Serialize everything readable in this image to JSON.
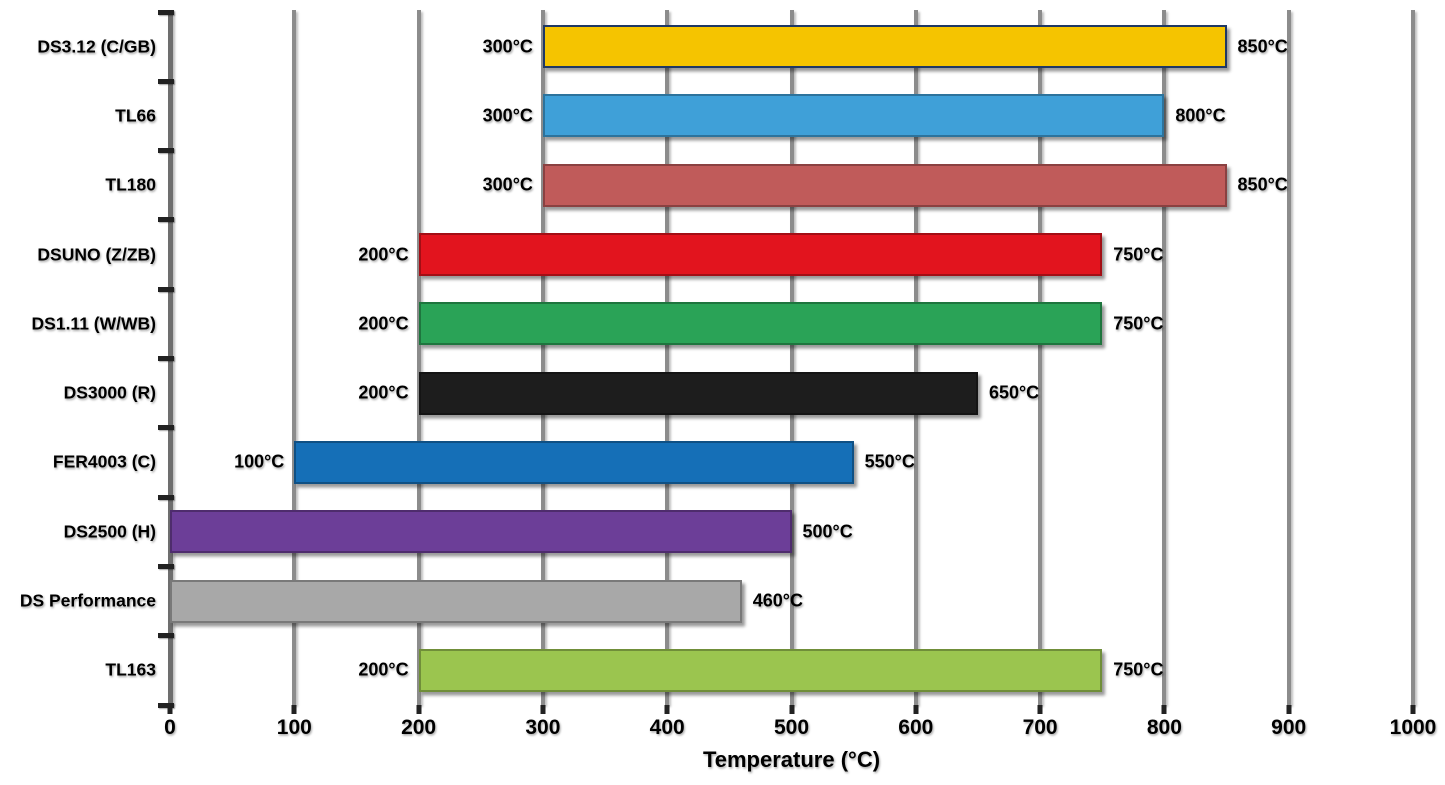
{
  "page": {
    "background": "#ffffff"
  },
  "chart_data": {
    "type": "bar",
    "orientation": "horizontal-range",
    "title": "",
    "xlabel": "Temperature (°C)",
    "ylabel": "",
    "xlim": [
      0,
      1000
    ],
    "grid": "vertical gray gridlines every 100",
    "legend": "none",
    "x_ticks": [
      {
        "value": 0,
        "label": "0"
      },
      {
        "value": 100,
        "label": "100"
      },
      {
        "value": 200,
        "label": "200"
      },
      {
        "value": 300,
        "label": "300"
      },
      {
        "value": 400,
        "label": "400"
      },
      {
        "value": 500,
        "label": "500"
      },
      {
        "value": 600,
        "label": "600"
      },
      {
        "value": 700,
        "label": "700"
      },
      {
        "value": 800,
        "label": "800"
      },
      {
        "value": 900,
        "label": "900"
      },
      {
        "value": 1000,
        "label": "1000"
      }
    ],
    "rows": [
      {
        "label": "DS3.12 (C/GB)",
        "start": 300,
        "end": 850,
        "start_label": "300°C",
        "end_label": "850°C",
        "color": "#F5C400",
        "edge": "#1F3864"
      },
      {
        "label": "TL66",
        "start": 300,
        "end": 800,
        "start_label": "300°C",
        "end_label": "800°C",
        "color": "#3FA0D8",
        "edge": ""
      },
      {
        "label": "TL180",
        "start": 300,
        "end": 850,
        "start_label": "300°C",
        "end_label": "850°C",
        "color": "#C05B5A",
        "edge": ""
      },
      {
        "label": "DSUNO (Z/ZB)",
        "start": 200,
        "end": 750,
        "start_label": "200°C",
        "end_label": "750°C",
        "color": "#E2141E",
        "edge": ""
      },
      {
        "label": "DS1.11 (W/WB)",
        "start": 200,
        "end": 750,
        "start_label": "200°C",
        "end_label": "750°C",
        "color": "#2AA357",
        "edge": ""
      },
      {
        "label": "DS3000 (R)",
        "start": 200,
        "end": 650,
        "start_label": "200°C",
        "end_label": "650°C",
        "color": "#1D1D1D",
        "edge": ""
      },
      {
        "label": "FER4003 (C)",
        "start": 100,
        "end": 550,
        "start_label": "100°C",
        "end_label": "550°C",
        "color": "#156FB7",
        "edge": ""
      },
      {
        "label": "DS2500 (H)",
        "start": 0,
        "end": 500,
        "start_label": "",
        "end_label": "500°C",
        "color": "#6C3E98",
        "edge": ""
      },
      {
        "label": "DS Performance",
        "start": 0,
        "end": 460,
        "start_label": "",
        "end_label": "460°C",
        "color": "#A8A8A8",
        "edge": ""
      },
      {
        "label": "TL163",
        "start": 200,
        "end": 750,
        "start_label": "200°C",
        "end_label": "750°C",
        "color": "#9BC54F",
        "edge": ""
      }
    ]
  },
  "colors": {
    "gridline": "#8c8c8c",
    "axis_zero_line": "#6e6e6e",
    "tick": "#222222",
    "text": "#000000"
  }
}
